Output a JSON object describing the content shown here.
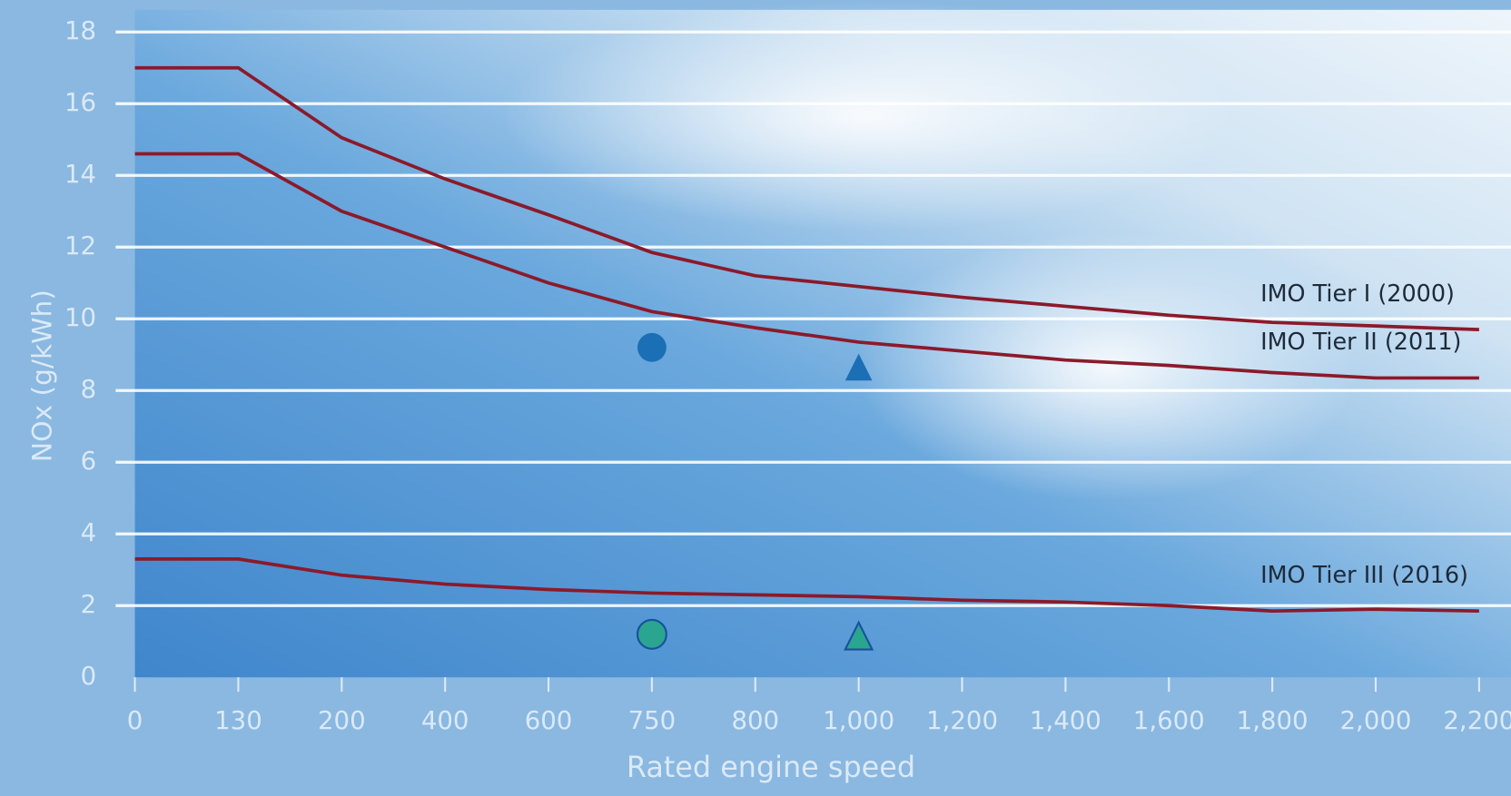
{
  "chart_data": {
    "type": "line",
    "x_label": "Rated engine speed",
    "y_label": "NOx (g/kWh)",
    "categories": [
      "0",
      "130",
      "200",
      "400",
      "600",
      "750",
      "800",
      "1,000",
      "1,200",
      "1,400",
      "1,600",
      "1,800",
      "2,000",
      "2,200"
    ],
    "ylim": [
      0,
      18
    ],
    "yticks": [
      0,
      2,
      4,
      6,
      8,
      10,
      12,
      14,
      16,
      18
    ],
    "grid": true,
    "series": [
      {
        "name": "IMO Tier I (2000)",
        "color": "#8b1a2a",
        "values": [
          17,
          17,
          15.05,
          13.9,
          12.9,
          11.85,
          11.2,
          10.9,
          10.6,
          10.35,
          10.1,
          9.9,
          9.8,
          9.7
        ]
      },
      {
        "name": "IMO Tier II (2011)",
        "color": "#8b1a2a",
        "values": [
          14.6,
          14.6,
          13,
          12,
          11,
          10.2,
          9.75,
          9.35,
          9.1,
          8.85,
          8.7,
          8.5,
          8.35,
          8.35
        ]
      },
      {
        "name": "IMO Tier III (2016)",
        "color": "#8b1a2a",
        "values": [
          3.3,
          3.3,
          2.85,
          2.6,
          2.45,
          2.35,
          2.3,
          2.25,
          2.15,
          2.1,
          2,
          1.85,
          1.9,
          1.85
        ]
      },
      {
        "marker": "circle",
        "color": "#1a6fb5",
        "values": [
          null,
          null,
          null,
          null,
          null,
          9.2,
          null,
          null,
          null,
          null,
          null,
          null,
          null,
          null
        ]
      },
      {
        "marker": "triangle",
        "color": "#1a6fb5",
        "values": [
          null,
          null,
          null,
          null,
          null,
          null,
          null,
          8.6,
          null,
          null,
          null,
          null,
          null,
          null
        ]
      },
      {
        "marker": "circle",
        "color": "#2aa58f",
        "values": [
          null,
          null,
          null,
          null,
          null,
          1.2,
          null,
          null,
          null,
          null,
          null,
          null,
          null,
          null
        ]
      },
      {
        "marker": "triangle",
        "color": "#2aa58f",
        "values": [
          null,
          null,
          null,
          null,
          null,
          null,
          null,
          1.1,
          null,
          null,
          null,
          null,
          null,
          null
        ]
      }
    ]
  }
}
